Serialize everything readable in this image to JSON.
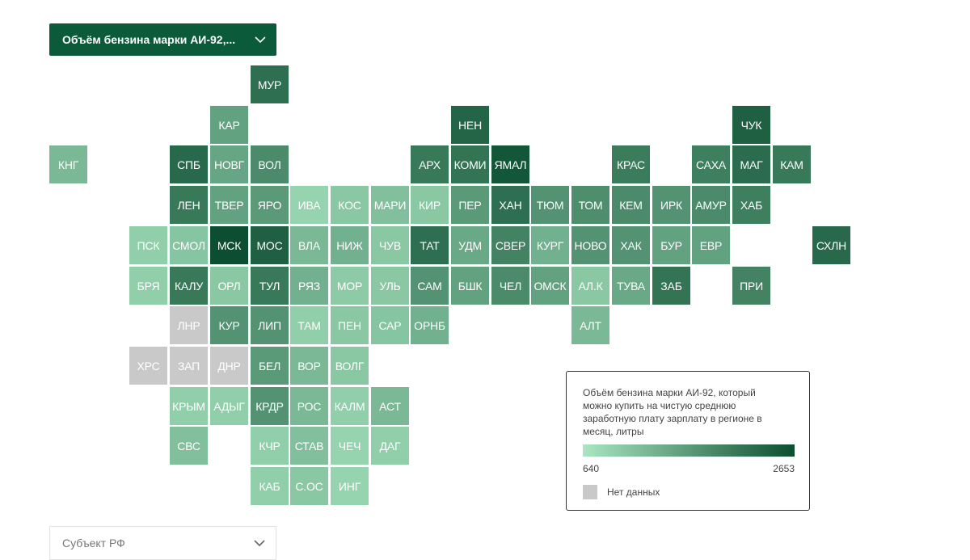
{
  "top_dropdown": {
    "label": "Объём бензина марки АИ-92,..."
  },
  "bottom_dropdown": {
    "placeholder": "Субъект РФ"
  },
  "legend": {
    "title": "Объём бензина марки АИ-92, который можно купить на чистую среднюю заработную плату зарплату в регионе в месяц, литры",
    "min": "640",
    "max": "2653",
    "min_color": "#a9e6c1",
    "max_color": "#0c4e31",
    "no_data_label": "Нет данных",
    "no_data_color": "#c9c9c9"
  },
  "regions": [
    {
      "label": "МУР",
      "col": 5,
      "row": 0,
      "level": 0.78
    },
    {
      "label": "КАР",
      "col": 4,
      "row": 1,
      "level": 0.45
    },
    {
      "label": "НЕН",
      "col": 10,
      "row": 1,
      "level": 0.85
    },
    {
      "label": "ЧУК",
      "col": 17,
      "row": 1,
      "level": 0.88
    },
    {
      "label": "КНГ",
      "col": 0,
      "row": 2,
      "level": 0.3
    },
    {
      "label": "СПБ",
      "col": 3,
      "row": 2,
      "level": 0.82
    },
    {
      "label": "НОВГ",
      "col": 4,
      "row": 2,
      "level": 0.42
    },
    {
      "label": "ВОЛ",
      "col": 5,
      "row": 2,
      "level": 0.6
    },
    {
      "label": "АРХ",
      "col": 9,
      "row": 2,
      "level": 0.72
    },
    {
      "label": "КОМИ",
      "col": 10,
      "row": 2,
      "level": 0.75
    },
    {
      "label": "ЯМАЛ",
      "col": 11,
      "row": 2,
      "level": 0.95
    },
    {
      "label": "КРАС",
      "col": 14,
      "row": 2,
      "level": 0.7
    },
    {
      "label": "САХА",
      "col": 16,
      "row": 2,
      "level": 0.68
    },
    {
      "label": "МАГ",
      "col": 17,
      "row": 2,
      "level": 0.8
    },
    {
      "label": "КАМ",
      "col": 18,
      "row": 2,
      "level": 0.72
    },
    {
      "label": "ЛЕН",
      "col": 3,
      "row": 3,
      "level": 0.72
    },
    {
      "label": "ТВЕР",
      "col": 4,
      "row": 3,
      "level": 0.45
    },
    {
      "label": "ЯРО",
      "col": 5,
      "row": 3,
      "level": 0.5
    },
    {
      "label": "ИВА",
      "col": 6,
      "row": 3,
      "level": 0.12
    },
    {
      "label": "КОС",
      "col": 7,
      "row": 3,
      "level": 0.2
    },
    {
      "label": "МАРИ",
      "col": 8,
      "row": 3,
      "level": 0.25
    },
    {
      "label": "КИР",
      "col": 9,
      "row": 3,
      "level": 0.2
    },
    {
      "label": "ПЕР",
      "col": 10,
      "row": 3,
      "level": 0.5
    },
    {
      "label": "ХАН",
      "col": 11,
      "row": 3,
      "level": 0.78
    },
    {
      "label": "ТЮМ",
      "col": 12,
      "row": 3,
      "level": 0.55
    },
    {
      "label": "ТОМ",
      "col": 13,
      "row": 3,
      "level": 0.58
    },
    {
      "label": "КЕМ",
      "col": 14,
      "row": 3,
      "level": 0.6
    },
    {
      "label": "ИРК",
      "col": 15,
      "row": 3,
      "level": 0.55
    },
    {
      "label": "АМУР",
      "col": 16,
      "row": 3,
      "level": 0.6
    },
    {
      "label": "ХАБ",
      "col": 17,
      "row": 3,
      "level": 0.68
    },
    {
      "label": "ПСК",
      "col": 2,
      "row": 4,
      "level": 0.15
    },
    {
      "label": "СМОЛ",
      "col": 3,
      "row": 4,
      "level": 0.22
    },
    {
      "label": "МСК",
      "col": 4,
      "row": 4,
      "level": 1.0
    },
    {
      "label": "МОС",
      "col": 5,
      "row": 4,
      "level": 0.88
    },
    {
      "label": "ВЛА",
      "col": 6,
      "row": 4,
      "level": 0.3
    },
    {
      "label": "НИЖ",
      "col": 7,
      "row": 4,
      "level": 0.35
    },
    {
      "label": "ЧУВ",
      "col": 8,
      "row": 4,
      "level": 0.2
    },
    {
      "label": "ТАТ",
      "col": 9,
      "row": 4,
      "level": 0.78
    },
    {
      "label": "УДМ",
      "col": 10,
      "row": 4,
      "level": 0.4
    },
    {
      "label": "СВЕР",
      "col": 11,
      "row": 4,
      "level": 0.65
    },
    {
      "label": "КУРГ",
      "col": 12,
      "row": 4,
      "level": 0.35
    },
    {
      "label": "НОВО",
      "col": 13,
      "row": 4,
      "level": 0.55
    },
    {
      "label": "ХАК",
      "col": 14,
      "row": 4,
      "level": 0.55
    },
    {
      "label": "БУР",
      "col": 15,
      "row": 4,
      "level": 0.45
    },
    {
      "label": "ЕВР",
      "col": 16,
      "row": 4,
      "level": 0.45
    },
    {
      "label": "СХЛН",
      "col": 19,
      "row": 4,
      "level": 0.82
    },
    {
      "label": "БРЯ",
      "col": 2,
      "row": 5,
      "level": 0.15
    },
    {
      "label": "КАЛУ",
      "col": 3,
      "row": 5,
      "level": 0.72
    },
    {
      "label": "ОРЛ",
      "col": 4,
      "row": 5,
      "level": 0.2
    },
    {
      "label": "ТУЛ",
      "col": 5,
      "row": 5,
      "level": 0.72
    },
    {
      "label": "РЯЗ",
      "col": 6,
      "row": 5,
      "level": 0.35
    },
    {
      "label": "МОР",
      "col": 7,
      "row": 5,
      "level": 0.18
    },
    {
      "label": "УЛЬ",
      "col": 8,
      "row": 5,
      "level": 0.2
    },
    {
      "label": "САМ",
      "col": 9,
      "row": 5,
      "level": 0.55
    },
    {
      "label": "БШК",
      "col": 10,
      "row": 5,
      "level": 0.45
    },
    {
      "label": "ЧЕЛ",
      "col": 11,
      "row": 5,
      "level": 0.6
    },
    {
      "label": "ОМСК",
      "col": 12,
      "row": 5,
      "level": 0.45
    },
    {
      "label": "АЛ.К",
      "col": 13,
      "row": 5,
      "level": 0.2
    },
    {
      "label": "ТУВА",
      "col": 14,
      "row": 5,
      "level": 0.4
    },
    {
      "label": "ЗАБ",
      "col": 15,
      "row": 5,
      "level": 0.75
    },
    {
      "label": "ПРИ",
      "col": 17,
      "row": 5,
      "level": 0.65
    },
    {
      "label": "ЛНР",
      "col": 3,
      "row": 6,
      "nodata": true
    },
    {
      "label": "КУР",
      "col": 4,
      "row": 6,
      "level": 0.55
    },
    {
      "label": "ЛИП",
      "col": 5,
      "row": 6,
      "level": 0.55
    },
    {
      "label": "ТАМ",
      "col": 6,
      "row": 6,
      "level": 0.15
    },
    {
      "label": "ПЕН",
      "col": 7,
      "row": 6,
      "level": 0.2
    },
    {
      "label": "САР",
      "col": 8,
      "row": 6,
      "level": 0.22
    },
    {
      "label": "ОРНБ",
      "col": 9,
      "row": 6,
      "level": 0.35
    },
    {
      "label": "АЛТ",
      "col": 13,
      "row": 6,
      "level": 0.3
    },
    {
      "label": "ХРС",
      "col": 2,
      "row": 7,
      "nodata": true
    },
    {
      "label": "ЗАП",
      "col": 3,
      "row": 7,
      "nodata": true
    },
    {
      "label": "ДНР",
      "col": 4,
      "row": 7,
      "nodata": true
    },
    {
      "label": "БЕЛ",
      "col": 5,
      "row": 7,
      "level": 0.5
    },
    {
      "label": "ВОР",
      "col": 6,
      "row": 7,
      "level": 0.3
    },
    {
      "label": "ВОЛГ",
      "col": 7,
      "row": 7,
      "level": 0.2
    },
    {
      "label": "КРЫМ",
      "col": 3,
      "row": 8,
      "level": 0.15
    },
    {
      "label": "АДЫГ",
      "col": 4,
      "row": 8,
      "level": 0.15
    },
    {
      "label": "КРДР",
      "col": 5,
      "row": 8,
      "level": 0.55
    },
    {
      "label": "РОС",
      "col": 6,
      "row": 8,
      "level": 0.3
    },
    {
      "label": "КАЛМ",
      "col": 7,
      "row": 8,
      "level": 0.15
    },
    {
      "label": "АСТ",
      "col": 8,
      "row": 8,
      "level": 0.3
    },
    {
      "label": "СВС",
      "col": 3,
      "row": 9,
      "level": 0.25
    },
    {
      "label": "КЧР",
      "col": 5,
      "row": 9,
      "level": 0.15
    },
    {
      "label": "СТАВ",
      "col": 6,
      "row": 9,
      "level": 0.25
    },
    {
      "label": "ЧЕЧ",
      "col": 7,
      "row": 9,
      "level": 0.12
    },
    {
      "label": "ДАГ",
      "col": 8,
      "row": 9,
      "level": 0.15
    },
    {
      "label": "КАБ",
      "col": 5,
      "row": 10,
      "level": 0.15
    },
    {
      "label": "С.ОС",
      "col": 6,
      "row": 10,
      "level": 0.2
    },
    {
      "label": "ИНГ",
      "col": 7,
      "row": 10,
      "level": 0.12
    }
  ]
}
